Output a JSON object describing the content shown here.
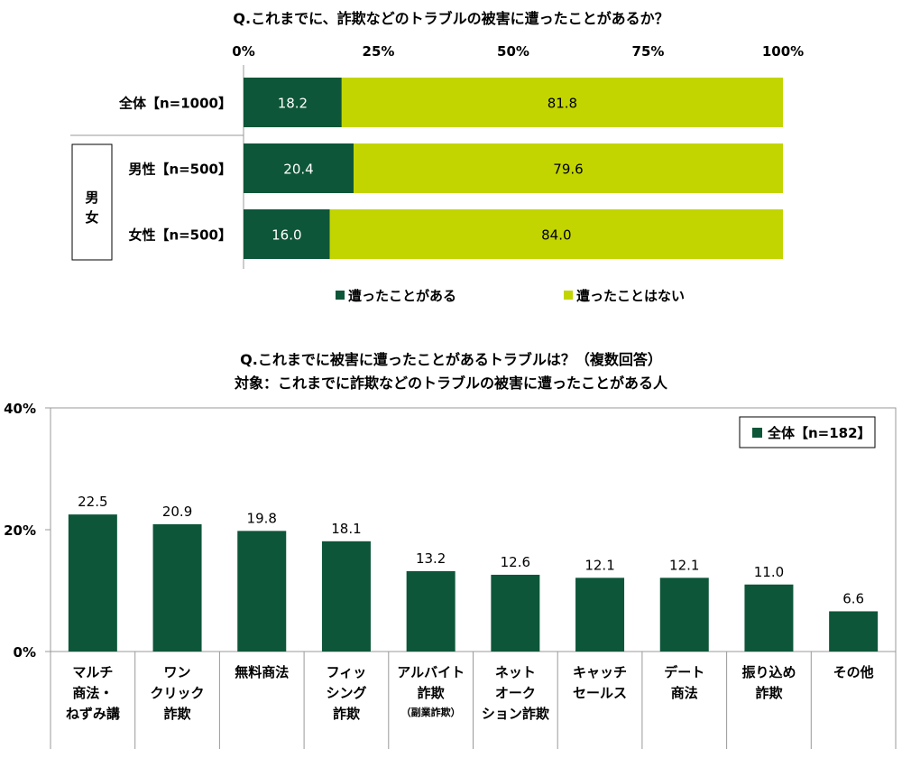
{
  "chart_data": [
    {
      "type": "bar",
      "orientation": "horizontal-stacked-100",
      "title": "Q.これまでに、詐欺などのトラブルの被害に遭ったことがあるか？",
      "x_ticks": [
        "0%",
        "25%",
        "50%",
        "75%",
        "100%"
      ],
      "xlim": [
        0,
        100
      ],
      "group_label": "男女",
      "categories": [
        "全体【n=1000】",
        "男性【n=500】",
        "女性【n=500】"
      ],
      "series": [
        {
          "name": "遭ったことがある",
          "color": "#0d5639",
          "values": [
            18.2,
            20.4,
            16.0
          ],
          "labels": [
            "18.2",
            "20.4",
            "16.0"
          ]
        },
        {
          "name": "遭ったことはない",
          "color": "#c2d500",
          "values": [
            81.8,
            79.6,
            84.0
          ],
          "labels": [
            "81.8",
            "79.6",
            "84.0"
          ]
        }
      ]
    },
    {
      "type": "bar",
      "title": "Q.これまでに被害に遭ったことがあるトラブルは？（複数回答）",
      "subtitle": "対象：これまでに詐欺などのトラブルの被害に遭ったことがある人",
      "y_ticks": [
        "40%",
        "20%",
        "0%"
      ],
      "ylim": [
        0,
        40
      ],
      "legend": "全体【n=182】",
      "bar_color": "#0d5639",
      "categories": [
        {
          "lines": [
            "マルチ",
            "商法・",
            "ねずみ講"
          ]
        },
        {
          "lines": [
            "ワン",
            "クリック",
            "詐欺"
          ]
        },
        {
          "lines": [
            "無料商法"
          ]
        },
        {
          "lines": [
            "フィッ",
            "シング",
            "詐欺"
          ]
        },
        {
          "lines": [
            "アルバイト",
            "詐欺"
          ],
          "note": "（副業詐欺）"
        },
        {
          "lines": [
            "ネット",
            "オーク",
            "ション詐欺"
          ]
        },
        {
          "lines": [
            "キャッチ",
            "セールス"
          ]
        },
        {
          "lines": [
            "デート",
            "商法"
          ]
        },
        {
          "lines": [
            "振り込め",
            "詐欺"
          ]
        },
        {
          "lines": [
            "その他"
          ]
        }
      ],
      "values": [
        22.5,
        20.9,
        19.8,
        18.1,
        13.2,
        12.6,
        12.1,
        12.1,
        11.0,
        6.6
      ],
      "labels": [
        "22.5",
        "20.9",
        "19.8",
        "18.1",
        "13.2",
        "12.6",
        "12.1",
        "12.1",
        "11.0",
        "6.6"
      ]
    }
  ]
}
